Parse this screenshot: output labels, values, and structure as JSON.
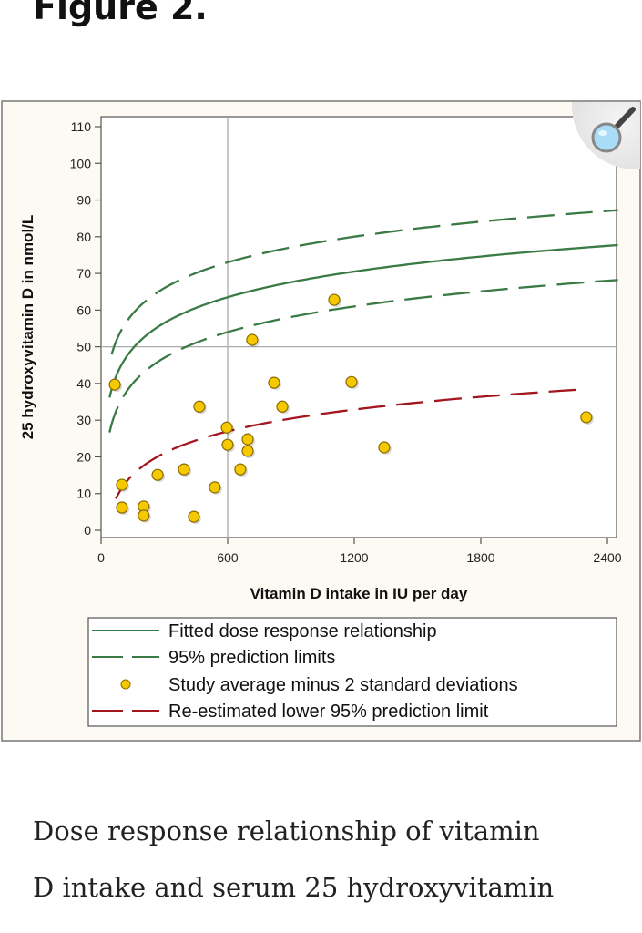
{
  "figure_title": "Figure 2.",
  "caption_lines": [
    "Dose response relationship of vitamin",
    "D intake and serum 25 hydroxyvitamin"
  ],
  "zoom_icon": "magnifier-icon",
  "colors": {
    "green": "#3a7a44",
    "red": "#a3161e",
    "point": "#f6c800",
    "point_edge": "#8a6a00",
    "panel_bg": "#fdfaf3"
  },
  "chart_data": {
    "type": "scatter",
    "title": "",
    "xlabel": "Vitamin D intake in IU per day",
    "ylabel": "25 hydroxyvitamin D in nmol/L",
    "xlim": [
      0,
      2450
    ],
    "ylim": [
      -2,
      112
    ],
    "xticks": [
      0,
      600,
      1200,
      1800,
      2400
    ],
    "xtick_labels": [
      "0",
      "600",
      "1200",
      "1800",
      "2400"
    ],
    "yticks": [
      0,
      10,
      20,
      30,
      40,
      50,
      60,
      70,
      80,
      90,
      100,
      110
    ],
    "ytick_labels": [
      "0",
      "10",
      "20",
      "30",
      "40",
      "50",
      "60",
      "70",
      "80",
      "90",
      "100",
      "110"
    ],
    "reference_lines": {
      "x": 600,
      "y": 50
    },
    "curves": [
      {
        "name": "Fitted dose response relationship",
        "model": "a + b*ln(x)",
        "a": -1.1,
        "b": 10.1,
        "x_range": [
          40,
          2450
        ],
        "style": "solid",
        "color": "green"
      },
      {
        "name": "95% prediction limits (upper)",
        "model": "a + b*ln(x)",
        "a": 8.4,
        "b": 10.1,
        "x_range": [
          50,
          2450
        ],
        "style": "dashed",
        "color": "green"
      },
      {
        "name": "95% prediction limits (lower)",
        "model": "a + b*ln(x)",
        "a": -10.6,
        "b": 10.1,
        "x_range": [
          40,
          2450
        ],
        "style": "dashed",
        "color": "green"
      },
      {
        "name": "Re-estimated lower 95% prediction limit",
        "model": "a + b*ln(x)",
        "a": -27.8,
        "b": 8.56,
        "x_range": [
          70,
          2300
        ],
        "style": "dashed",
        "color": "red"
      }
    ],
    "points": [
      [
        65,
        39.7
      ],
      [
        99,
        6.2
      ],
      [
        99,
        12.4
      ],
      [
        202,
        6.5
      ],
      [
        202,
        4.0
      ],
      [
        268,
        15.1
      ],
      [
        393,
        16.6
      ],
      [
        466,
        33.7
      ],
      [
        440,
        3.7
      ],
      [
        539,
        11.7
      ],
      [
        596,
        28.0
      ],
      [
        600,
        23.3
      ],
      [
        660,
        16.6
      ],
      [
        695,
        24.8
      ],
      [
        695,
        21.6
      ],
      [
        716,
        51.9
      ],
      [
        820,
        40.2
      ],
      [
        859,
        33.7
      ],
      [
        1105,
        62.8
      ],
      [
        1187,
        40.4
      ],
      [
        1342,
        22.6
      ],
      [
        2300,
        30.8
      ]
    ],
    "legend": {
      "placement": "bottom",
      "entries": [
        {
          "label": "Fitted dose response relationship",
          "marker": "solid-line",
          "color": "green"
        },
        {
          "label": "95% prediction limits",
          "marker": "dashed-line",
          "color": "green"
        },
        {
          "label": "Study average minus 2 standard deviations",
          "marker": "circle",
          "color": "point"
        },
        {
          "label": "Re-estimated lower 95% prediction limit",
          "marker": "dashed-line",
          "color": "red"
        }
      ]
    }
  }
}
